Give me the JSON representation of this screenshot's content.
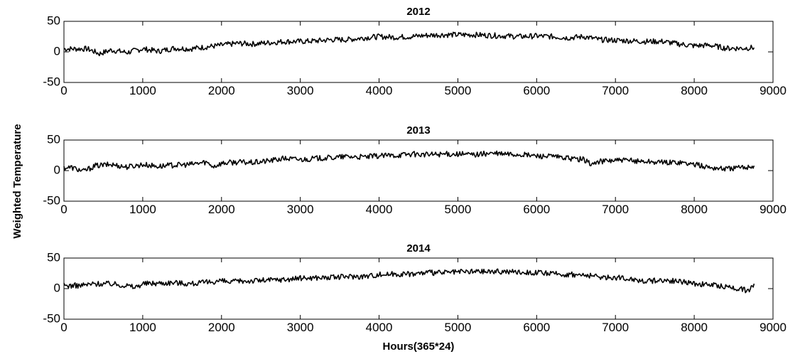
{
  "chart_data": [
    {
      "type": "line",
      "title": "2012",
      "ylabel": "Weighted Temperature",
      "xlabel": "",
      "xlim": [
        0,
        9000
      ],
      "ylim": [
        -50,
        50
      ],
      "xticks": [
        0,
        1000,
        2000,
        3000,
        4000,
        5000,
        6000,
        7000,
        8000,
        9000
      ],
      "yticks": [
        -50,
        0,
        50
      ],
      "grid": false,
      "series": [
        {
          "color": "#000000",
          "x": [
            0,
            300,
            450,
            600,
            800,
            1000,
            1200,
            1400,
            1600,
            1800,
            2000,
            2200,
            2400,
            2600,
            2800,
            3000,
            3200,
            3400,
            3600,
            3800,
            4000,
            4200,
            4400,
            4600,
            4800,
            5000,
            5200,
            5400,
            5600,
            5800,
            6000,
            6200,
            6400,
            6600,
            6800,
            7000,
            7200,
            7400,
            7600,
            7800,
            8000,
            8200,
            8400,
            8600,
            8760
          ],
          "y": [
            5,
            5,
            -3,
            3,
            -1,
            5,
            1,
            6,
            5,
            8,
            11,
            14,
            13,
            15,
            17,
            17,
            18,
            20,
            20,
            23,
            25,
            24,
            25,
            27,
            28,
            28,
            28,
            27,
            26,
            25,
            26,
            25,
            23,
            25,
            20,
            19,
            18,
            17,
            17,
            13,
            10,
            11,
            6,
            6,
            7
          ]
        }
      ]
    },
    {
      "type": "line",
      "title": "2013",
      "ylabel": "Weighted Temperature",
      "xlabel": "",
      "xlim": [
        0,
        9000
      ],
      "ylim": [
        -50,
        50
      ],
      "xticks": [
        0,
        1000,
        2000,
        3000,
        4000,
        5000,
        6000,
        7000,
        8000,
        9000
      ],
      "yticks": [
        -50,
        0,
        50
      ],
      "grid": false,
      "series": [
        {
          "color": "#000000",
          "x": [
            0,
            100,
            250,
            400,
            600,
            800,
            1000,
            1200,
            1400,
            1600,
            1800,
            1900,
            2000,
            2200,
            2400,
            2600,
            2800,
            3000,
            3200,
            3400,
            3600,
            3800,
            4000,
            4200,
            4400,
            4600,
            4800,
            5000,
            5200,
            5400,
            5600,
            5800,
            6000,
            6200,
            6400,
            6600,
            6700,
            6800,
            7000,
            7200,
            7400,
            7600,
            7800,
            8000,
            8200,
            8400,
            8600,
            8760
          ],
          "y": [
            5,
            5,
            -1,
            8,
            10,
            6,
            10,
            7,
            9,
            10,
            14,
            7,
            12,
            14,
            13,
            16,
            20,
            18,
            20,
            21,
            23,
            22,
            24,
            25,
            27,
            26,
            27,
            27,
            26,
            28,
            27,
            26,
            24,
            23,
            20,
            18,
            10,
            15,
            17,
            16,
            15,
            13,
            14,
            10,
            5,
            3,
            5,
            8
          ]
        }
      ]
    },
    {
      "type": "line",
      "title": "2014",
      "ylabel": "Weighted Temperature",
      "xlabel": "Hours(365*24)",
      "xlim": [
        0,
        9000
      ],
      "ylim": [
        -50,
        50
      ],
      "xticks": [
        0,
        1000,
        2000,
        3000,
        4000,
        5000,
        6000,
        7000,
        8000,
        9000
      ],
      "yticks": [
        -50,
        0,
        50
      ],
      "grid": false,
      "series": [
        {
          "color": "#000000",
          "x": [
            0,
            200,
            400,
            600,
            800,
            900,
            1000,
            1200,
            1400,
            1600,
            1800,
            2000,
            2100,
            2200,
            2400,
            2600,
            2800,
            3000,
            3200,
            3400,
            3600,
            3800,
            4000,
            4200,
            4400,
            4600,
            4800,
            5000,
            5200,
            5400,
            5600,
            5800,
            6000,
            6200,
            6400,
            6600,
            6800,
            7000,
            7200,
            7400,
            7600,
            7800,
            8000,
            8200,
            8400,
            8600,
            8700,
            8760
          ],
          "y": [
            5,
            5,
            8,
            8,
            5,
            2,
            8,
            9,
            10,
            8,
            10,
            13,
            10,
            12,
            13,
            14,
            15,
            17,
            18,
            18,
            20,
            20,
            23,
            24,
            24,
            26,
            26,
            27,
            28,
            28,
            28,
            27,
            26,
            24,
            23,
            22,
            19,
            18,
            16,
            12,
            14,
            12,
            8,
            6,
            3,
            0,
            -5,
            8
          ]
        }
      ]
    }
  ]
}
